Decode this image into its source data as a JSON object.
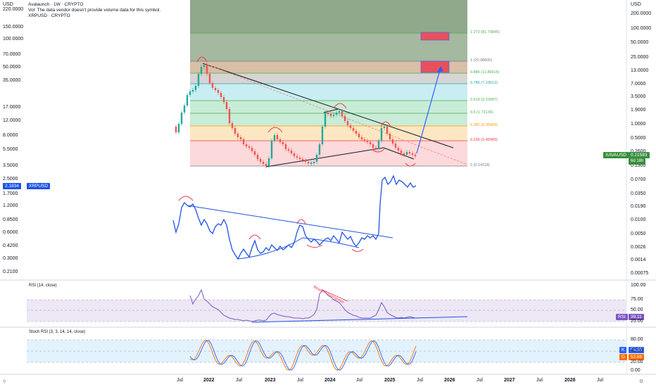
{
  "header": {
    "title": "Avalaunch · 1W · CRYPTO",
    "volume_note": "Vol: The data vendor doesn't provide volume data for this symbol.",
    "overlay_symbol": "XRPUSD · CRYPTO"
  },
  "left_axis": {
    "unit": "USD",
    "ticks": [
      "220.0000",
      "150.0000",
      "100.0000",
      "70.0000",
      "50.0000",
      "35.0000",
      "17.0000",
      "12.0000",
      "8.0000",
      "5.5000",
      "3.5000",
      "2.5000",
      "1.7000",
      "1.2000",
      "0.8500",
      "0.6000",
      "0.4200",
      "0.3000",
      "0.2100"
    ]
  },
  "right_axis": {
    "unit": "USD",
    "ticks": [
      "200.0000",
      "100.0000",
      "50.0000",
      "25.0000",
      "13.0000",
      "7.0000",
      "3.5000",
      "1.9000",
      "1.0000",
      "0.5000",
      "0.2600",
      "0.1300",
      "0.0700",
      "0.0350",
      "0.0190",
      "0.0100",
      "0.0050",
      "0.0026",
      "0.0014",
      "0.00075"
    ]
  },
  "badges": {
    "xavausd_symbol": "XAVAUSD",
    "xavausd_price": "0.21583",
    "xavausd_countdown": "6d 18h",
    "xrpusd_price": "2.1834",
    "xrpusd_symbol": "XRPUSD",
    "rsi_label": "RSI",
    "rsi_value": "39.11",
    "stoch_k_label": "K",
    "stoch_k_value": "54.35",
    "stoch_d_label": "D",
    "stoch_d_value": "52.86"
  },
  "fib_levels": [
    {
      "label": "1.272 (81.79845)",
      "color": "#4caf50"
    },
    {
      "label": "1 (20.98605)",
      "color": "#787b86"
    },
    {
      "label": "0.886 (11.86615)",
      "color": "#4caf50"
    },
    {
      "label": "0.786 (7.19612)",
      "color": "#26a69a"
    },
    {
      "label": "0.618 (3.10587)",
      "color": "#4caf50"
    },
    {
      "label": "0.5 (1.72136)",
      "color": "#4caf50"
    },
    {
      "label": "0.382 (0.95403)",
      "color": "#ff9800"
    },
    {
      "label": "0.236 (0.45965)",
      "color": "#f23645"
    },
    {
      "label": "0 (0.14118)",
      "color": "#787b86"
    }
  ],
  "rsi_panel": {
    "title": "RSI (14, close)",
    "annotation": "Bearish Divergence",
    "ticks": [
      "100.00",
      "75.00",
      "50.00",
      "25.00"
    ]
  },
  "stoch_panel": {
    "title": "Stoch RSI (3, 3, 14, 14, close)",
    "ticks": [
      "80.00",
      "40.00",
      "20.00",
      "0.00"
    ]
  },
  "x_axis": {
    "ticks": [
      {
        "label": "Jul",
        "bold": false
      },
      {
        "label": "2022",
        "bold": true
      },
      {
        "label": "Jul",
        "bold": false
      },
      {
        "label": "2023",
        "bold": true
      },
      {
        "label": "Jul",
        "bold": false
      },
      {
        "label": "2024",
        "bold": true
      },
      {
        "label": "Jul",
        "bold": false
      },
      {
        "label": "2025",
        "bold": true
      },
      {
        "label": "Jul",
        "bold": false
      },
      {
        "label": "2026",
        "bold": true
      },
      {
        "label": "Jul",
        "bold": false
      },
      {
        "label": "2027",
        "bold": true
      },
      {
        "label": "Jul",
        "bold": false
      },
      {
        "label": "2028",
        "bold": true
      },
      {
        "label": "Jul",
        "bold": false
      }
    ]
  },
  "colors": {
    "price_up": "#26a69a",
    "price_down": "#ef5350",
    "xrp_line": "#1e53e5",
    "rsi_line": "#7e57c2",
    "stoch_k": "#2962ff",
    "stoch_d": "#ff6d00",
    "trendline": "#131722",
    "projection": "#2962ff",
    "curve_marks": "#f23645"
  }
}
